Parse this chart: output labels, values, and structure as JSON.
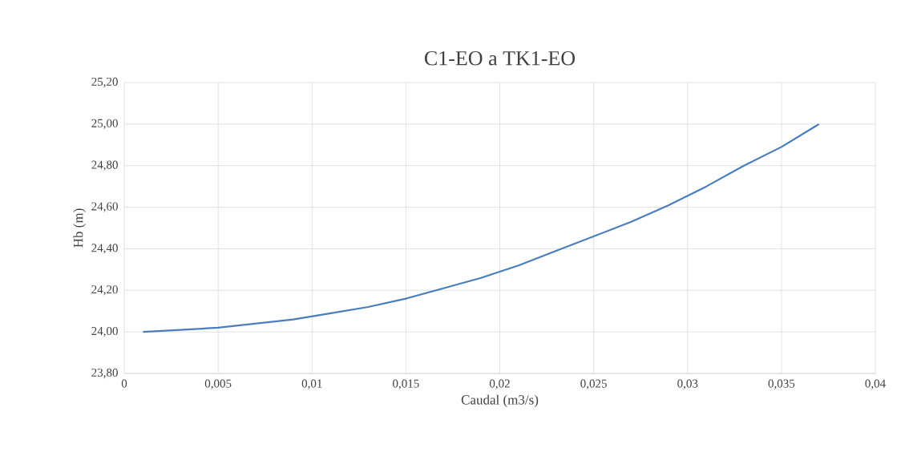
{
  "chart_data": {
    "type": "line",
    "title": "C1-EO a TK1-EO",
    "xlabel": "Caudal (m3/s)",
    "ylabel": "Hb (m)",
    "x": [
      0.001,
      0.003,
      0.005,
      0.007,
      0.009,
      0.011,
      0.013,
      0.015,
      0.017,
      0.019,
      0.021,
      0.023,
      0.025,
      0.027,
      0.029,
      0.031,
      0.033,
      0.035,
      0.037
    ],
    "series": [
      {
        "color": "#4a7ebb",
        "values": [
          24.0,
          24.01,
          24.02,
          24.04,
          24.06,
          24.09,
          24.12,
          24.16,
          24.21,
          24.26,
          24.32,
          24.39,
          24.46,
          24.53,
          24.61,
          24.7,
          24.8,
          24.89,
          25.0
        ]
      }
    ],
    "xlim": [
      0,
      0.04
    ],
    "xticks": [
      0,
      {
        "value": 0.005,
        "label": "0,005"
      },
      {
        "value": 0.01,
        "label": "0,01"
      },
      {
        "value": 0.015,
        "label": "0,015"
      },
      {
        "value": 0.02,
        "label": "0,02"
      },
      {
        "value": 0.025,
        "label": "0,025"
      },
      {
        "value": 0.03,
        "label": "0,03"
      },
      {
        "value": 0.035,
        "label": "0,035"
      },
      {
        "value": 0.04,
        "label": "0,04"
      }
    ],
    "ylim": [
      23.8,
      25.2
    ],
    "yticks": [
      {
        "value": 23.8,
        "label": "23,80"
      },
      {
        "value": 24.0,
        "label": "24,00"
      },
      {
        "value": 24.2,
        "label": "24,20"
      },
      {
        "value": 24.4,
        "label": "24,40"
      },
      {
        "value": 24.6,
        "label": "24,60"
      },
      {
        "value": 24.8,
        "label": "24,80"
      },
      {
        "value": 25.0,
        "label": "25,00"
      },
      {
        "value": 25.2,
        "label": "25,20"
      }
    ],
    "grid": true,
    "marker": "none",
    "line_style": "solid"
  }
}
